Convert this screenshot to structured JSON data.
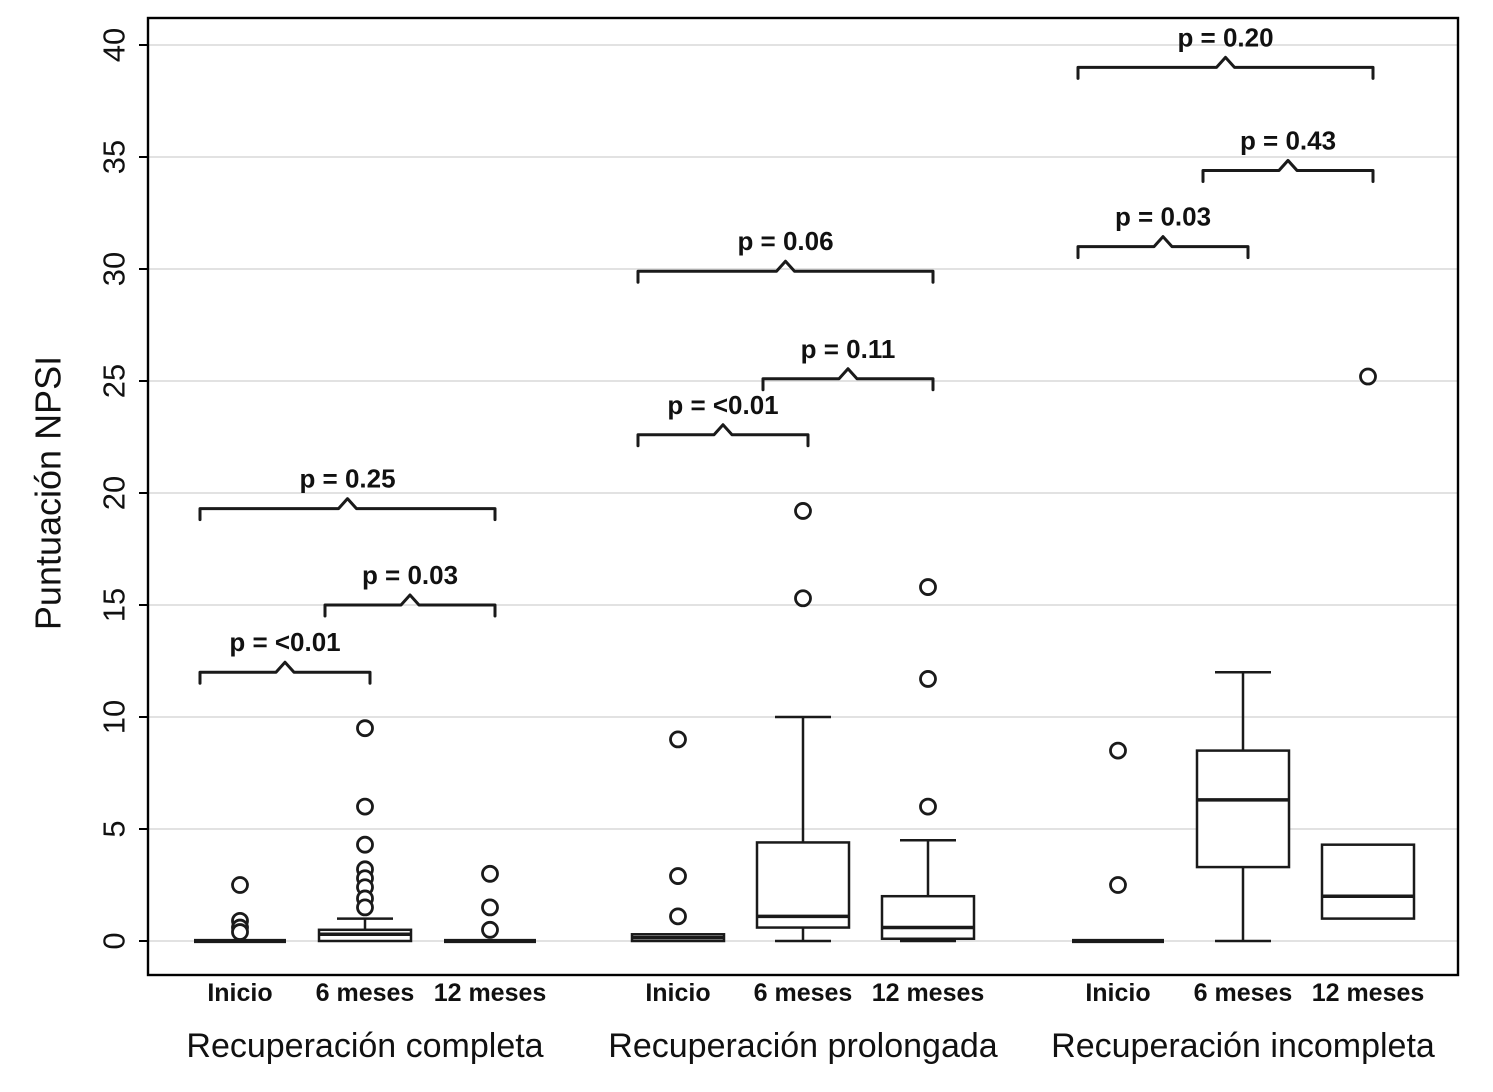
{
  "chart_data": {
    "type": "boxplot",
    "title": "",
    "ylabel": "Puntuación NPSI",
    "ylim": [
      0,
      40
    ],
    "yticks": [
      0,
      5,
      10,
      15,
      20,
      25,
      30,
      35,
      40
    ],
    "grid": true,
    "legend": false,
    "groups": [
      {
        "label": "Recuperación completa",
        "categories": [
          "Inicio",
          "6 meses",
          "12 meses"
        ],
        "boxes": [
          {
            "category": "Inicio",
            "whisker_low": 0,
            "q1": 0,
            "median": 0,
            "q3": 0,
            "whisker_high": 0,
            "outliers": [
              2.5,
              0.9,
              0.6,
              0.4
            ]
          },
          {
            "category": "6 meses",
            "whisker_low": 0,
            "q1": 0,
            "median": 0.3,
            "q3": 0.5,
            "whisker_high": 1.0,
            "outliers": [
              9.5,
              6.0,
              4.3,
              3.2,
              2.8,
              2.4,
              1.9,
              1.5
            ]
          },
          {
            "category": "12 meses",
            "whisker_low": 0,
            "q1": 0,
            "median": 0,
            "q3": 0,
            "whisker_high": 0,
            "outliers": [
              3.0,
              1.5,
              0.5
            ]
          }
        ],
        "comparisons": [
          {
            "from": 0,
            "to": 1,
            "y": 12.0,
            "label": "p = <0.01"
          },
          {
            "from": 1,
            "to": 2,
            "y": 15.0,
            "label": "p = 0.03"
          },
          {
            "from": 0,
            "to": 2,
            "y": 19.3,
            "label": "p = 0.25"
          }
        ]
      },
      {
        "label": "Recuperación prolongada",
        "categories": [
          "Inicio",
          "6 meses",
          "12 meses"
        ],
        "boxes": [
          {
            "category": "Inicio",
            "whisker_low": 0,
            "q1": 0,
            "median": 0.15,
            "q3": 0.3,
            "whisker_high": 0.3,
            "outliers": [
              9.0,
              2.9,
              1.1
            ]
          },
          {
            "category": "6 meses",
            "whisker_low": 0,
            "q1": 0.6,
            "median": 1.1,
            "q3": 4.4,
            "whisker_high": 10.0,
            "outliers": [
              19.2,
              15.3
            ]
          },
          {
            "category": "12 meses",
            "whisker_low": 0,
            "q1": 0.1,
            "median": 0.6,
            "q3": 2.0,
            "whisker_high": 4.5,
            "outliers": [
              15.8,
              11.7,
              6.0
            ]
          }
        ],
        "comparisons": [
          {
            "from": 0,
            "to": 1,
            "y": 22.6,
            "label": "p = <0.01"
          },
          {
            "from": 1,
            "to": 2,
            "y": 25.1,
            "label": "p = 0.11"
          },
          {
            "from": 0,
            "to": 2,
            "y": 29.9,
            "label": "p = 0.06"
          }
        ]
      },
      {
        "label": "Recuperación incompleta",
        "categories": [
          "Inicio",
          "6 meses",
          "12 meses"
        ],
        "boxes": [
          {
            "category": "Inicio",
            "whisker_low": 0,
            "q1": 0,
            "median": 0,
            "q3": 0,
            "whisker_high": 0,
            "outliers": [
              8.5,
              2.5
            ]
          },
          {
            "category": "6 meses",
            "whisker_low": 0,
            "q1": 3.3,
            "median": 6.3,
            "q3": 8.5,
            "whisker_high": 12.0,
            "outliers": []
          },
          {
            "category": "12 meses",
            "whisker_low": 1.0,
            "q1": 1.0,
            "median": 2.0,
            "q3": 4.3,
            "whisker_high": 4.3,
            "outliers": [
              25.2
            ]
          }
        ],
        "comparisons": [
          {
            "from": 0,
            "to": 1,
            "y": 31.0,
            "label": "p = 0.03"
          },
          {
            "from": 1,
            "to": 2,
            "y": 34.4,
            "label": "p = 0.43"
          },
          {
            "from": 0,
            "to": 2,
            "y": 39.0,
            "label": "p = 0.20"
          }
        ]
      }
    ],
    "colors": {
      "stroke": "#1a1a1a",
      "box_fill": "#ffffff",
      "grid": "#d9d9d9",
      "background": "#ffffff"
    }
  }
}
